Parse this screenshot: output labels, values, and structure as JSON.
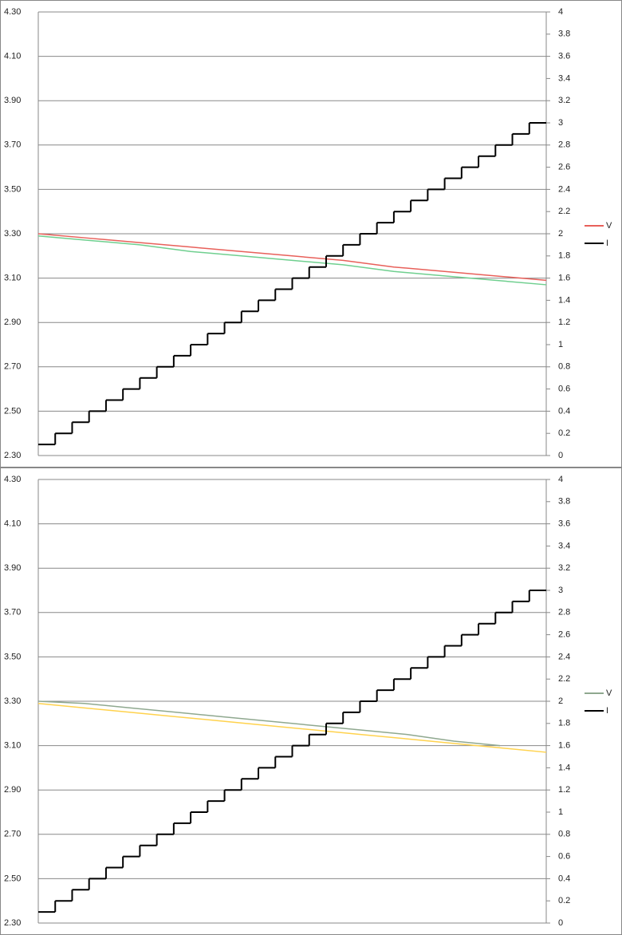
{
  "chart_data": [
    {
      "type": "line",
      "ylim": [
        2.3,
        4.3
      ],
      "yticks": [
        {
          "value": 2.3,
          "label": "2.30"
        },
        {
          "value": 2.5,
          "label": "2.50"
        },
        {
          "value": 2.7,
          "label": "2.70"
        },
        {
          "value": 2.9,
          "label": "2.90"
        },
        {
          "value": 3.1,
          "label": "3.10"
        },
        {
          "value": 3.3,
          "label": "3.30"
        },
        {
          "value": 3.5,
          "label": "3.50"
        },
        {
          "value": 3.7,
          "label": "3.70"
        },
        {
          "value": 3.9,
          "label": "3.90"
        },
        {
          "value": 4.1,
          "label": "4.10"
        },
        {
          "value": 4.3,
          "label": "4.30"
        }
      ],
      "y2lim": [
        0,
        4
      ],
      "y2ticks": [
        0,
        0.2,
        0.4,
        0.6,
        0.8,
        1,
        1.2,
        1.4,
        1.6,
        1.8,
        2,
        2.2,
        2.4,
        2.6,
        2.8,
        3,
        3.2,
        3.4,
        3.6,
        3.8,
        4
      ],
      "grid": true,
      "series": [
        {
          "name": "V",
          "color": "#e8605a",
          "values": [
            3.3,
            3.28,
            3.26,
            3.24,
            3.22,
            3.2,
            3.18,
            3.15,
            3.13,
            3.11,
            3.09
          ]
        },
        {
          "color": "#6fcf8f",
          "values": [
            3.29,
            3.27,
            3.25,
            3.22,
            3.2,
            3.18,
            3.16,
            3.13,
            3.11,
            3.09,
            3.07
          ]
        },
        {
          "name": "I",
          "color": "#000000",
          "axis": "y2",
          "values": [
            0.1,
            0.2,
            0.3,
            0.4,
            0.5,
            0.6,
            0.7,
            0.8,
            0.9,
            1.0,
            1.1,
            1.2,
            1.3,
            1.4,
            1.5,
            1.6,
            1.7,
            1.8,
            1.9,
            2.0,
            2.1,
            2.2,
            2.3,
            2.4,
            2.5,
            2.6,
            2.7,
            2.8,
            2.9,
            3.0
          ]
        }
      ]
    },
    {
      "type": "line",
      "ylim": [
        2.3,
        4.3
      ],
      "yticks": [
        {
          "value": 2.3,
          "label": "2.30"
        },
        {
          "value": 2.5,
          "label": "2.50"
        },
        {
          "value": 2.7,
          "label": "2.70"
        },
        {
          "value": 2.9,
          "label": "2.90"
        },
        {
          "value": 3.1,
          "label": "3.10"
        },
        {
          "value": 3.3,
          "label": "3.30"
        },
        {
          "value": 3.5,
          "label": "3.50"
        },
        {
          "value": 3.7,
          "label": "3.70"
        },
        {
          "value": 3.9,
          "label": "3.90"
        },
        {
          "value": 4.1,
          "label": "4.10"
        },
        {
          "value": 4.3,
          "label": "4.30"
        }
      ],
      "y2lim": [
        0,
        4
      ],
      "y2ticks": [
        0,
        0.2,
        0.4,
        0.6,
        0.8,
        1,
        1.2,
        1.4,
        1.6,
        1.8,
        2,
        2.2,
        2.4,
        2.6,
        2.8,
        3,
        3.2,
        3.4,
        3.6,
        3.8,
        4
      ],
      "grid": true,
      "series": [
        {
          "name": "V",
          "color": "#8fa88f",
          "values": [
            3.3,
            3.29,
            3.27,
            3.25,
            3.23,
            3.21,
            3.19,
            3.17,
            3.15,
            3.12,
            3.1,
            null
          ]
        },
        {
          "color": "#ffd24d",
          "values": [
            3.29,
            3.27,
            3.25,
            3.23,
            3.21,
            3.19,
            3.17,
            3.15,
            3.13,
            3.11,
            3.09,
            3.07
          ]
        },
        {
          "name": "I",
          "color": "#000000",
          "axis": "y2",
          "values": [
            0.1,
            0.2,
            0.3,
            0.4,
            0.5,
            0.6,
            0.7,
            0.8,
            0.9,
            1.0,
            1.1,
            1.2,
            1.3,
            1.4,
            1.5,
            1.6,
            1.7,
            1.8,
            1.9,
            2.0,
            2.1,
            2.2,
            2.3,
            2.4,
            2.5,
            2.6,
            2.7,
            2.8,
            2.9,
            3.0
          ]
        }
      ]
    }
  ]
}
